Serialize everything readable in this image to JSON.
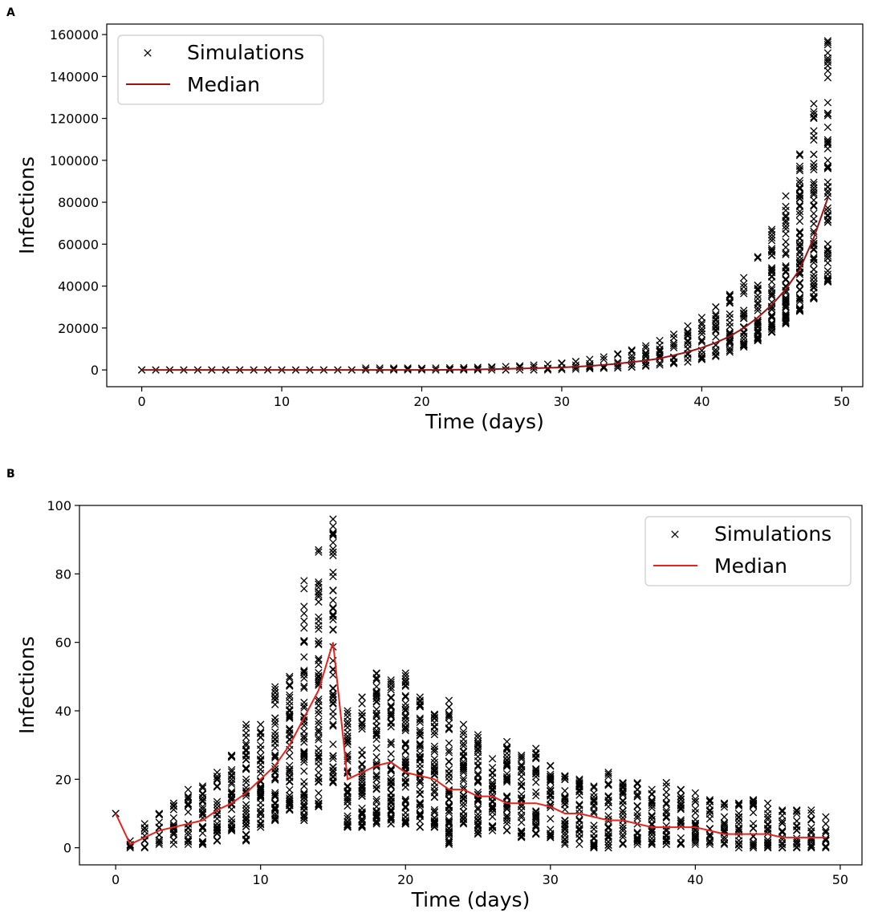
{
  "panels": {
    "a": {
      "letter": "A"
    },
    "b": {
      "letter": "B"
    }
  },
  "colors": {
    "marker": "#000000",
    "median_a": "#9b1010",
    "median_b": "#e8221c",
    "legend_border": "#cccccc"
  },
  "chart_data": [
    {
      "panel": "A",
      "type": "scatter",
      "xlabel": "Time (days)",
      "ylabel": "Infections",
      "xlim": [
        -2.5,
        51.5
      ],
      "ylim": [
        -8000,
        165000
      ],
      "xticks": [
        0,
        10,
        20,
        30,
        40,
        50
      ],
      "xtick_labels": [
        "0",
        "10",
        "20",
        "30",
        "40",
        "50"
      ],
      "yticks": [
        0,
        20000,
        40000,
        60000,
        80000,
        100000,
        120000,
        140000,
        160000
      ],
      "ytick_labels": [
        "0",
        "20000",
        "40000",
        "60000",
        "80000",
        "100000",
        "120000",
        "140000",
        "160000"
      ],
      "legend": {
        "position": "upper-left",
        "entries": [
          "Simulations",
          "Median"
        ]
      },
      "series": [
        {
          "name": "Simulations",
          "kind": "scatter-ranges",
          "x": [
            0,
            1,
            2,
            3,
            4,
            5,
            6,
            7,
            8,
            9,
            10,
            11,
            12,
            13,
            14,
            15,
            16,
            17,
            18,
            19,
            20,
            21,
            22,
            23,
            24,
            25,
            26,
            27,
            28,
            29,
            30,
            31,
            32,
            33,
            34,
            35,
            36,
            37,
            38,
            39,
            40,
            41,
            42,
            43,
            44,
            45,
            46,
            47,
            48,
            49
          ],
          "min": [
            0,
            0,
            0,
            0,
            0,
            0,
            0,
            0,
            0,
            0,
            0,
            0,
            0,
            0,
            0,
            0,
            0,
            0,
            0,
            0,
            0,
            0,
            0,
            0,
            0,
            0,
            0,
            0,
            0,
            0,
            200,
            400,
            600,
            800,
            1000,
            1400,
            1800,
            2400,
            3000,
            3800,
            5000,
            6500,
            8500,
            11000,
            14000,
            18000,
            22000,
            28000,
            34000,
            42000
          ],
          "max": [
            0,
            0,
            0,
            0,
            0,
            0,
            0,
            0,
            0,
            0,
            0,
            0,
            0,
            0,
            0,
            0,
            900,
            900,
            900,
            900,
            800,
            900,
            1000,
            1100,
            1200,
            1400,
            1600,
            1900,
            2300,
            2700,
            3300,
            4000,
            5000,
            6200,
            7700,
            9500,
            11500,
            14000,
            17000,
            21000,
            25000,
            30000,
            36000,
            44000,
            54000,
            67000,
            83000,
            103000,
            127000,
            157000
          ]
        },
        {
          "name": "Median",
          "kind": "line",
          "x": [
            0,
            1,
            2,
            3,
            4,
            5,
            6,
            7,
            8,
            9,
            10,
            11,
            12,
            13,
            14,
            15,
            16,
            17,
            18,
            19,
            20,
            21,
            22,
            23,
            24,
            25,
            26,
            27,
            28,
            29,
            30,
            31,
            32,
            33,
            34,
            35,
            36,
            37,
            38,
            39,
            40,
            41,
            42,
            43,
            44,
            45,
            46,
            47,
            48,
            49
          ],
          "y": [
            0,
            0,
            0,
            0,
            0,
            0,
            0,
            0,
            0,
            0,
            0,
            0,
            0,
            0,
            0,
            0,
            0,
            0,
            0,
            0,
            0,
            0,
            100,
            150,
            250,
            350,
            500,
            650,
            800,
            1000,
            1200,
            1500,
            1900,
            2400,
            3000,
            3700,
            4500,
            5500,
            7000,
            8600,
            10600,
            13000,
            16000,
            20000,
            25000,
            31000,
            38500,
            48000,
            63000,
            82000
          ]
        }
      ]
    },
    {
      "panel": "B",
      "type": "scatter",
      "xlabel": "Time (days)",
      "ylabel": "Infections",
      "xlim": [
        -2.5,
        51.5
      ],
      "ylim": [
        -5,
        100
      ],
      "xticks": [
        0,
        10,
        20,
        30,
        40,
        50
      ],
      "xtick_labels": [
        "0",
        "10",
        "20",
        "30",
        "40",
        "50"
      ],
      "yticks": [
        0,
        20,
        40,
        60,
        80,
        100
      ],
      "ytick_labels": [
        "0",
        "20",
        "40",
        "60",
        "80",
        "100"
      ],
      "legend": {
        "position": "upper-right",
        "entries": [
          "Simulations",
          "Median"
        ]
      },
      "series": [
        {
          "name": "Simulations",
          "kind": "scatter-ranges",
          "x": [
            0,
            1,
            2,
            3,
            4,
            5,
            6,
            7,
            8,
            9,
            10,
            11,
            12,
            13,
            14,
            15,
            16,
            17,
            18,
            19,
            20,
            21,
            22,
            23,
            24,
            25,
            26,
            27,
            28,
            29,
            30,
            31,
            32,
            33,
            34,
            35,
            36,
            37,
            38,
            39,
            40,
            41,
            42,
            43,
            44,
            45,
            46,
            47,
            48,
            49
          ],
          "min": [
            10,
            0,
            0,
            1,
            1,
            1,
            1,
            2,
            5,
            2,
            6,
            8,
            11,
            8,
            12,
            19,
            6,
            6,
            7,
            7,
            7,
            6,
            6,
            1,
            7,
            4,
            5,
            5,
            3,
            4,
            3,
            1,
            1,
            0,
            0,
            1,
            1,
            1,
            1,
            1,
            1,
            1,
            1,
            0,
            0,
            0,
            0,
            0,
            0,
            0
          ],
          "max": [
            10,
            2,
            7,
            10,
            13,
            17,
            18,
            22,
            27,
            36,
            36,
            47,
            50,
            78,
            87,
            96,
            40,
            44,
            51,
            49,
            51,
            44,
            39,
            43,
            36,
            33,
            26,
            31,
            27,
            29,
            24,
            21,
            20,
            18,
            22,
            19,
            19,
            17,
            19,
            17,
            16,
            14,
            13,
            13,
            14,
            13,
            11,
            11,
            11,
            9
          ]
        },
        {
          "name": "Median",
          "kind": "line",
          "x": [
            0,
            1,
            2,
            3,
            4,
            5,
            6,
            7,
            8,
            9,
            10,
            11,
            12,
            13,
            14,
            15,
            16,
            17,
            18,
            19,
            20,
            21,
            22,
            23,
            24,
            25,
            26,
            27,
            28,
            29,
            30,
            31,
            32,
            33,
            34,
            35,
            36,
            37,
            38,
            39,
            40,
            41,
            42,
            43,
            44,
            45,
            46,
            47,
            48,
            49
          ],
          "y": [
            10,
            1,
            3,
            5,
            6,
            7,
            8,
            11,
            13,
            16,
            20,
            24,
            30,
            38,
            46,
            60,
            20,
            22,
            24,
            25,
            22,
            21,
            20,
            17,
            17,
            15,
            15,
            13,
            13,
            13,
            12,
            10,
            10,
            9,
            8,
            8,
            7,
            6,
            6,
            6,
            6,
            5,
            4,
            4,
            4,
            4,
            3,
            3,
            3,
            3
          ]
        }
      ]
    }
  ]
}
